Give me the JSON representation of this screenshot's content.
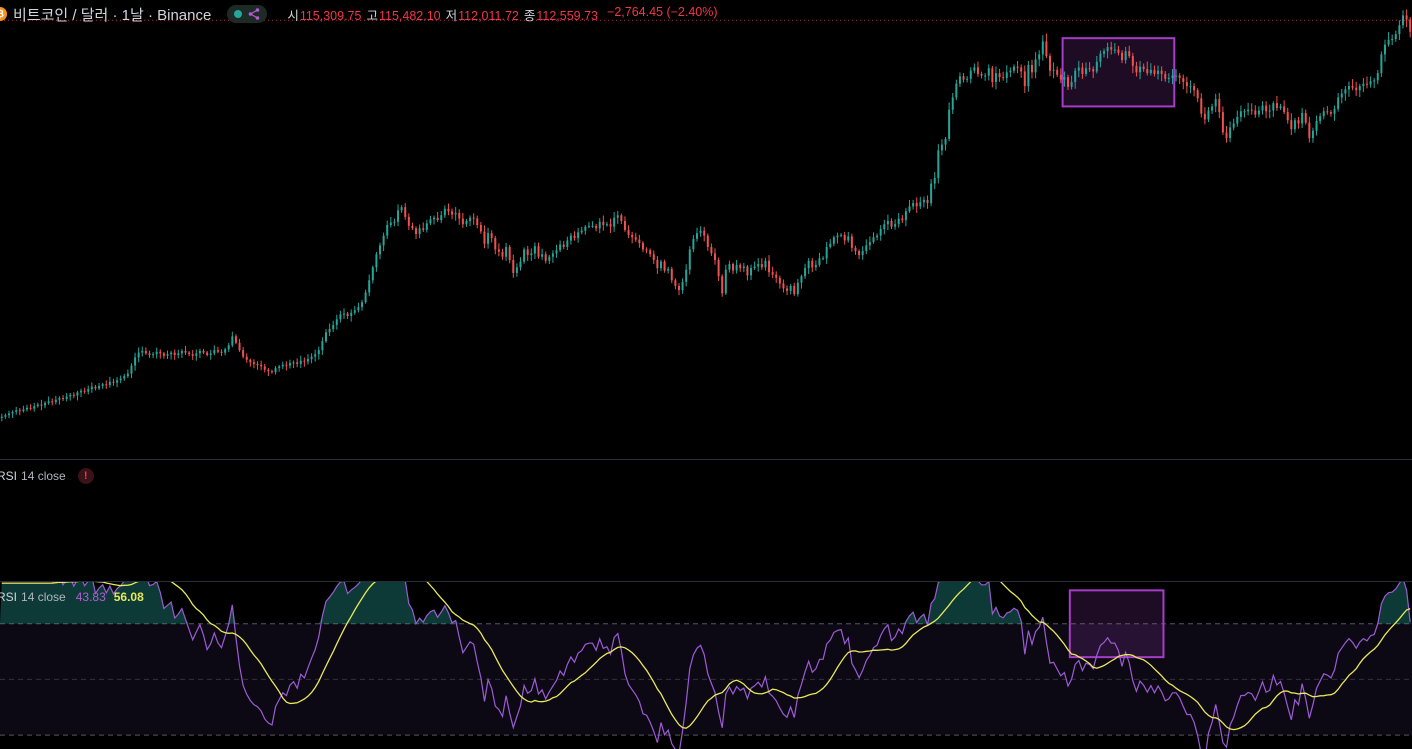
{
  "header": {
    "coin_icon": "bitcoin-icon",
    "symbol_title": "비트코인 / 달러 · 1날 · Binance",
    "share_icon": "share-icon",
    "ohlc": {
      "o_label": "시",
      "o_value": "115,309.75",
      "h_label": "고",
      "h_value": "115,482.10",
      "l_label": "저",
      "l_value": "112,011.72",
      "c_label": "종",
      "c_value": "112,559.73",
      "change": "−2,764.45 (−2.40%)"
    }
  },
  "indicators": [
    {
      "name": "RSI",
      "params": "14 close",
      "warning": "!"
    },
    {
      "name": "RSI",
      "params": "14 close",
      "rsi_value": "43.83",
      "ma_value": "56.08"
    }
  ],
  "colors": {
    "up": "#26a69a",
    "down": "#ef5350",
    "rsi_line": "#9c5bd6",
    "rsi_ma": "#e8e85a",
    "highlight": "#a63cc8",
    "background": "#000000"
  },
  "chart_data": [
    {
      "type": "candlestick",
      "title": "",
      "price_line": 124000,
      "ylim": [
        70000,
        126500
      ],
      "close": [
        75200,
        75400,
        75600,
        75800,
        76000,
        75900,
        76100,
        76300,
        76200,
        76500,
        76700,
        76600,
        76900,
        77100,
        77000,
        77300,
        77500,
        77400,
        77700,
        77900,
        77800,
        78200,
        78400,
        78300,
        78600,
        78900,
        78700,
        79000,
        79200,
        79100,
        79500,
        79400,
        79700,
        79900,
        80200,
        80500,
        81500,
        82500,
        83100,
        83300,
        83000,
        82800,
        82900,
        83200,
        83000,
        82700,
        82900,
        83100,
        82800,
        83000,
        83300,
        83100,
        82900,
        82700,
        83000,
        83300,
        83100,
        82800,
        83000,
        83400,
        83200,
        83100,
        83500,
        84000,
        85100,
        84300,
        83400,
        82600,
        82200,
        81900,
        81700,
        81600,
        81400,
        81000,
        80800,
        80700,
        81200,
        81400,
        81600,
        81500,
        81800,
        81900,
        81700,
        82100,
        82000,
        82300,
        82600,
        82900,
        83400,
        84500,
        85600,
        86000,
        86500,
        87200,
        87800,
        87900,
        87600,
        88000,
        88300,
        88700,
        89300,
        90500,
        92000,
        93600,
        95200,
        96300,
        97500,
        98800,
        99100,
        99200,
        100600,
        101000,
        99800,
        98700,
        98400,
        97700,
        98400,
        98200,
        99000,
        99500,
        99700,
        99400,
        100000,
        100800,
        100500,
        100100,
        100300,
        99600,
        98900,
        99300,
        99700,
        99600,
        98800,
        98000,
        96500,
        97800,
        97200,
        95800,
        95500,
        94900,
        96100,
        94500,
        92900,
        93600,
        94300,
        95800,
        95100,
        95300,
        96200,
        94900,
        95200,
        94400,
        94900,
        95300,
        95700,
        96400,
        96100,
        96900,
        97500,
        97200,
        97900,
        98100,
        98600,
        98700,
        98700,
        98400,
        99200,
        98800,
        98900,
        98600,
        99700,
        100000,
        99300,
        98200,
        97600,
        97300,
        97000,
        96600,
        95800,
        95700,
        95200,
        94500,
        93500,
        94300,
        93200,
        93400,
        92000,
        91300,
        90800,
        91800,
        93300,
        95800,
        97100,
        97800,
        98100,
        97500,
        96100,
        95300,
        94500,
        92500,
        90400,
        93300,
        94000,
        93200,
        93900,
        93500,
        93700,
        92600,
        93500,
        93700,
        94000,
        93600,
        94400,
        93000,
        92700,
        92300,
        91600,
        91000,
        90700,
        91300,
        90300,
        91700,
        92500,
        93500,
        94400,
        93600,
        93900,
        94700,
        94700,
        96100,
        96500,
        97300,
        97500,
        97600,
        96900,
        97400,
        96000,
        95600,
        95100,
        95600,
        96300,
        96700,
        97300,
        97500,
        98300,
        98900,
        99300,
        98600,
        98900,
        99600,
        99400,
        100500,
        101100,
        101500,
        101100,
        101600,
        101900,
        101500,
        103900,
        104600,
        108000,
        108700,
        109400,
        113000,
        114500,
        116200,
        117100,
        116700,
        116800,
        117800,
        118200,
        117400,
        117200,
        117200,
        118100,
        116400,
        117500,
        117000,
        116900,
        117600,
        117800,
        118300,
        118200,
        117700,
        115900,
        118500,
        117600,
        119200,
        119800,
        121400,
        119600,
        117800,
        117900,
        117300,
        116700,
        117000,
        115800,
        116400,
        117800,
        118200,
        117400,
        118100,
        118000,
        117700,
        118900,
        119900,
        120200,
        120700,
        120400,
        120400,
        120000,
        119100,
        120200,
        119600,
        118400,
        117600,
        118300,
        118000,
        117500,
        117900,
        117400,
        117800,
        117400,
        116800,
        116900,
        117200,
        117200,
        116900,
        116400,
        115900,
        115900,
        115400,
        114400,
        112500,
        111800,
        112900,
        113400,
        114300,
        112700,
        110200,
        109500,
        110800,
        111300,
        112100,
        112800,
        112800,
        113000,
        112900,
        112400,
        112900,
        113500,
        112800,
        112900,
        113800,
        113200,
        113400,
        112700,
        111700,
        110600,
        111700,
        111300,
        112600,
        111400,
        109500,
        110400,
        111600,
        112200,
        112800,
        112700,
        112500,
        113100,
        114500,
        115000,
        115500,
        115900,
        115700,
        115400,
        115900,
        116200,
        116100,
        116500,
        116600,
        117500,
        119800,
        121000,
        121600,
        121700,
        122300,
        123400,
        124600,
        124100,
        122600
      ],
      "open_high_low": "derived from close with ±0.3–0.7% wicks"
    },
    {
      "type": "line",
      "title": "RSI 14 close",
      "ylim": [
        25,
        85
      ],
      "bands": [
        70,
        50,
        30
      ],
      "series": [
        {
          "name": "RSI",
          "values": "computed from close (period 14)"
        },
        {
          "name": "RSI-based MA",
          "values": "SMA 14 of RSI"
        }
      ]
    }
  ],
  "highlight_boxes": [
    {
      "pane": "price",
      "from_bar": 295,
      "to_bar": 325,
      "price_top": 121800,
      "price_bottom": 113400
    },
    {
      "pane": "rsi",
      "from_bar": 297,
      "to_bar": 322,
      "rsi_top": 82,
      "rsi_bottom": 58
    }
  ]
}
